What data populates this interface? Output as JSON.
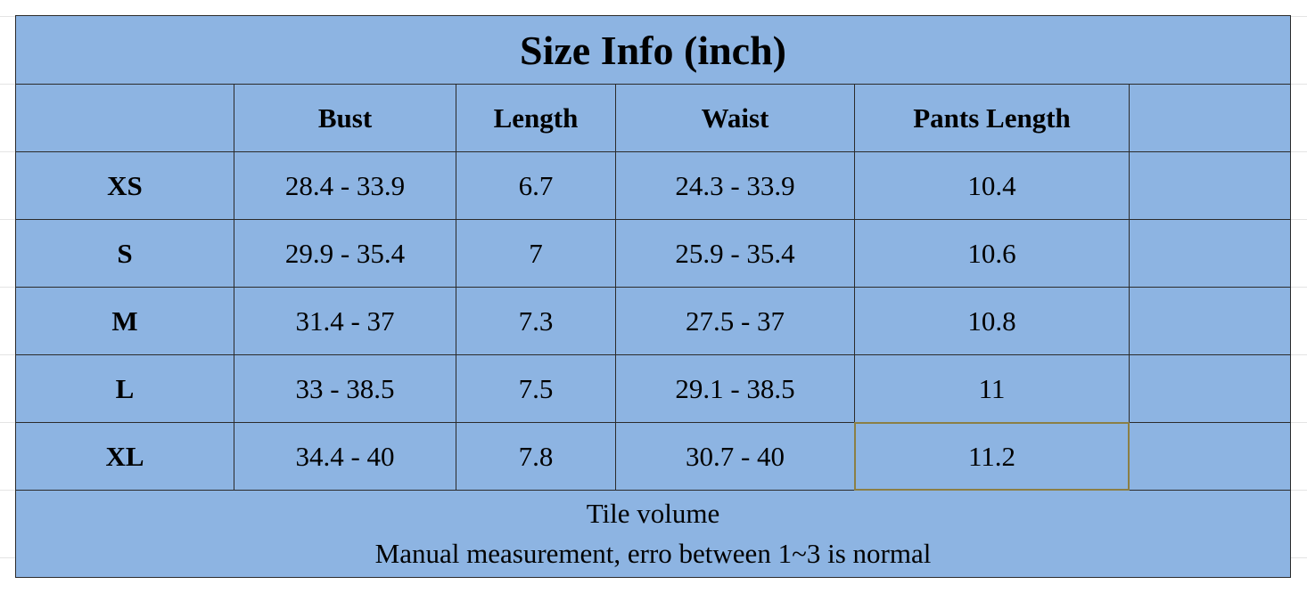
{
  "title": "Size Info (inch)",
  "header": [
    "Bust",
    "Length",
    "Waist",
    "Pants Length"
  ],
  "rows": [
    {
      "size": "XS",
      "cells": [
        "28.4 - 33.9",
        "6.7",
        "24.3 - 33.9",
        "10.4"
      ]
    },
    {
      "size": "S",
      "cells": [
        "29.9 - 35.4",
        "7",
        "25.9 - 35.4",
        "10.6"
      ]
    },
    {
      "size": "M",
      "cells": [
        "31.4 - 37",
        "7.3",
        "27.5 - 37",
        "10.8"
      ]
    },
    {
      "size": "L",
      "cells": [
        "33 - 38.5",
        "7.5",
        "29.1 - 38.5",
        "11"
      ]
    },
    {
      "size": "XL",
      "cells": [
        "34.4 - 40",
        "7.8",
        "30.7 - 40",
        "11.2"
      ]
    }
  ],
  "footer": [
    "Tile volume",
    "Manual measurement, erro between 1~3 is normal"
  ]
}
